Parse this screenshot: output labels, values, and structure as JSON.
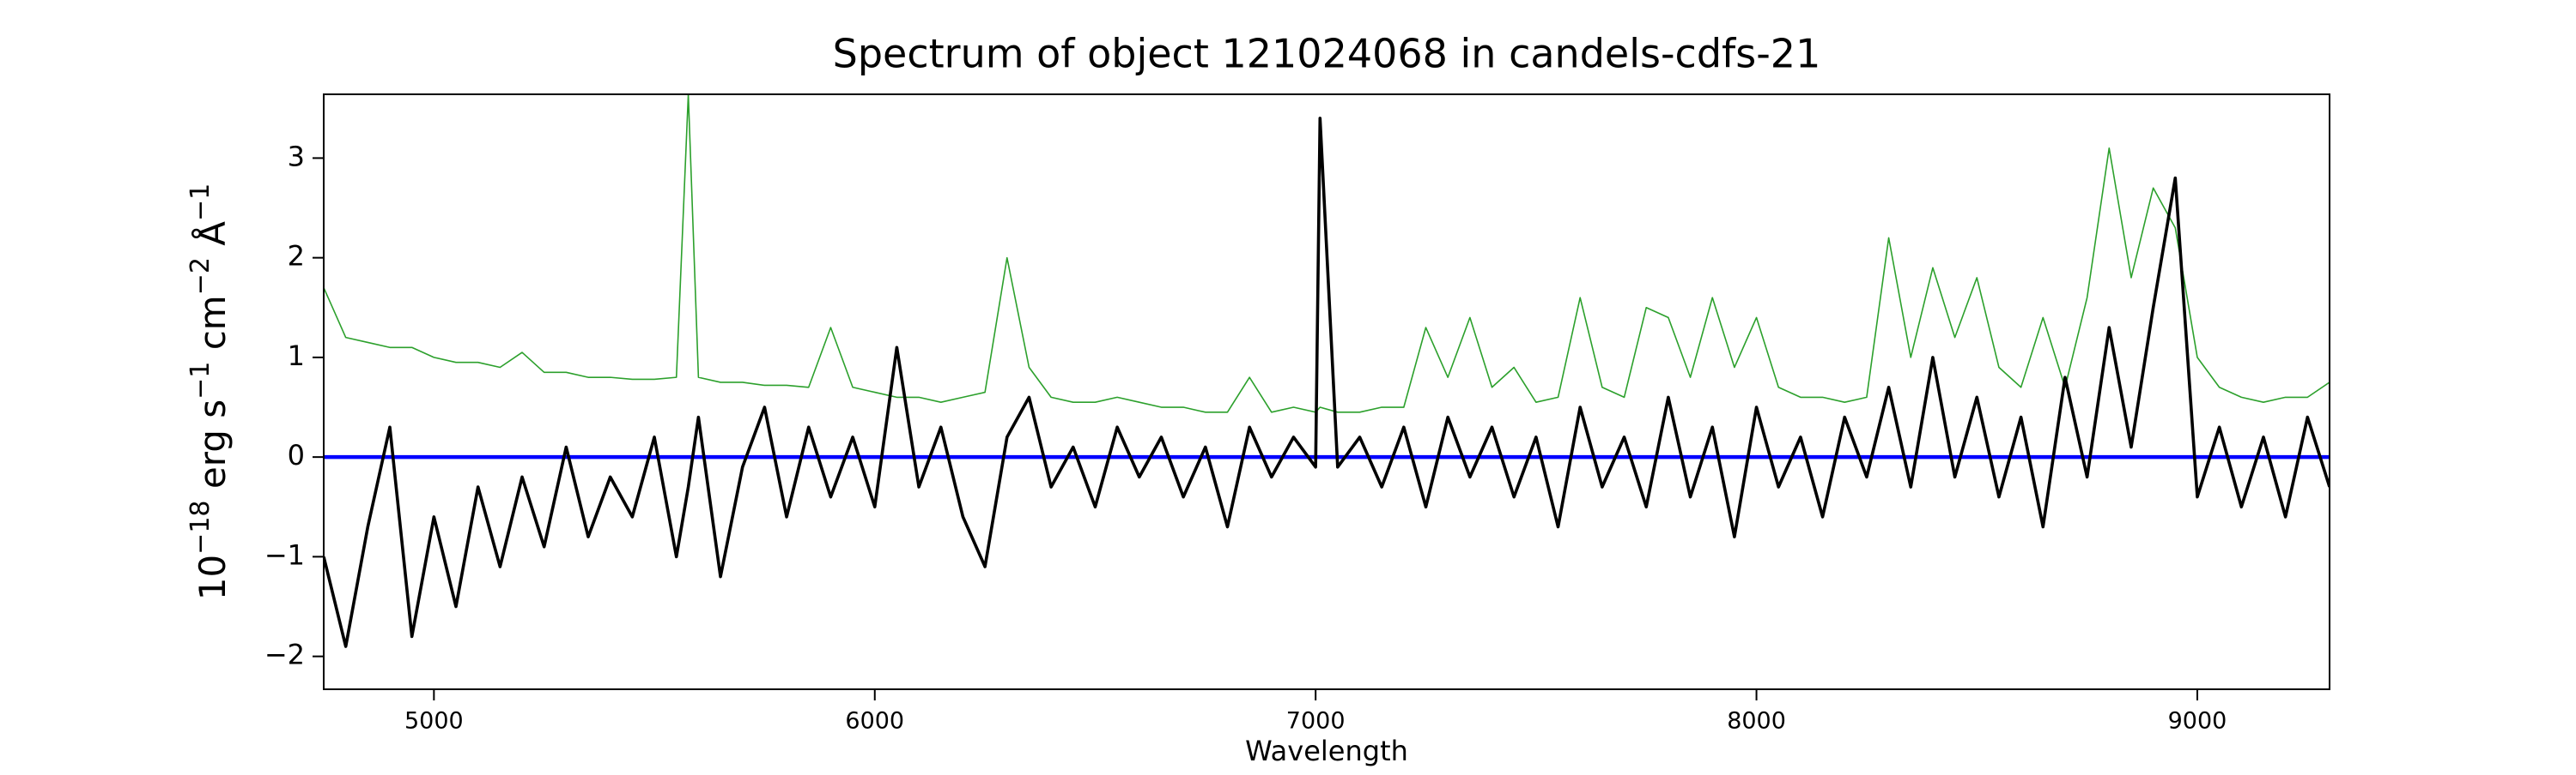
{
  "chart_data": {
    "type": "line",
    "title": "Spectrum of object 121024068 in candels-cdfs-21",
    "xlabel": "Wavelength",
    "ylabel_parts": [
      {
        "text": "10"
      },
      {
        "text": "−18",
        "sup": true
      },
      {
        "text": " erg s"
      },
      {
        "text": "−1",
        "sup": true
      },
      {
        "text": " cm"
      },
      {
        "text": "−2",
        "sup": true
      },
      {
        "text": " Å"
      },
      {
        "text": "−1",
        "sup": true
      }
    ],
    "x": [
      4750,
      4800,
      4850,
      4900,
      4950,
      5000,
      5050,
      5100,
      5150,
      5200,
      5250,
      5300,
      5350,
      5400,
      5450,
      5500,
      5550,
      5577,
      5600,
      5650,
      5700,
      5750,
      5800,
      5850,
      5900,
      5950,
      6000,
      6050,
      6100,
      6150,
      6200,
      6250,
      6300,
      6350,
      6400,
      6450,
      6500,
      6550,
      6600,
      6650,
      6700,
      6750,
      6800,
      6850,
      6900,
      6950,
      7000,
      7010,
      7050,
      7100,
      7150,
      7200,
      7250,
      7300,
      7350,
      7400,
      7450,
      7500,
      7550,
      7600,
      7650,
      7700,
      7750,
      7800,
      7850,
      7900,
      7950,
      8000,
      8050,
      8100,
      8150,
      8200,
      8250,
      8300,
      8350,
      8400,
      8450,
      8500,
      8550,
      8600,
      8650,
      8700,
      8750,
      8800,
      8850,
      8900,
      8950,
      9000,
      9050,
      9100,
      9150,
      9200,
      9250,
      9300
    ],
    "series": [
      {
        "color": "#2ca02c",
        "width": 1.6,
        "values": [
          1.7,
          1.2,
          1.15,
          1.1,
          1.1,
          1.0,
          0.95,
          0.95,
          0.9,
          1.05,
          0.85,
          0.85,
          0.8,
          0.8,
          0.78,
          0.78,
          0.8,
          3.64,
          0.8,
          0.75,
          0.75,
          0.72,
          0.72,
          0.7,
          1.3,
          0.7,
          0.65,
          0.6,
          0.6,
          0.55,
          0.6,
          0.65,
          2.0,
          0.9,
          0.6,
          0.55,
          0.55,
          0.6,
          0.55,
          0.5,
          0.5,
          0.45,
          0.45,
          0.8,
          0.45,
          0.5,
          0.45,
          0.5,
          0.45,
          0.45,
          0.5,
          0.5,
          1.3,
          0.8,
          1.4,
          0.7,
          0.9,
          0.55,
          0.6,
          1.6,
          0.7,
          0.6,
          1.5,
          1.4,
          0.8,
          1.6,
          0.9,
          1.4,
          0.7,
          0.6,
          0.6,
          0.55,
          0.6,
          2.2,
          1.0,
          1.9,
          1.2,
          1.8,
          0.9,
          0.7,
          1.4,
          0.7,
          1.6,
          3.1,
          1.8,
          2.7,
          2.3,
          1.0,
          0.7,
          0.6,
          0.55,
          0.6,
          0.6,
          0.75
        ]
      },
      {
        "color": "#000000",
        "width": 3.6,
        "values": [
          -1.0,
          -1.9,
          -0.7,
          0.3,
          -1.8,
          -0.6,
          -1.5,
          -0.3,
          -1.1,
          -0.2,
          -0.9,
          0.1,
          -0.8,
          -0.2,
          -0.6,
          0.2,
          -1.0,
          -0.3,
          0.4,
          -1.2,
          -0.1,
          0.5,
          -0.6,
          0.3,
          -0.4,
          0.2,
          -0.5,
          1.1,
          -0.3,
          0.3,
          -0.6,
          -1.1,
          0.2,
          0.6,
          -0.3,
          0.1,
          -0.5,
          0.3,
          -0.2,
          0.2,
          -0.4,
          0.1,
          -0.7,
          0.3,
          -0.2,
          0.2,
          -0.1,
          3.4,
          -0.1,
          0.2,
          -0.3,
          0.3,
          -0.5,
          0.4,
          -0.2,
          0.3,
          -0.4,
          0.2,
          -0.7,
          0.5,
          -0.3,
          0.2,
          -0.5,
          0.6,
          -0.4,
          0.3,
          -0.8,
          0.5,
          -0.3,
          0.2,
          -0.6,
          0.4,
          -0.2,
          0.7,
          -0.3,
          1.0,
          -0.2,
          0.6,
          -0.4,
          0.4,
          -0.7,
          0.8,
          -0.2,
          1.3,
          0.1,
          1.5,
          2.8,
          -0.4,
          0.3,
          -0.5,
          0.2,
          -0.6,
          0.4,
          -0.3
        ]
      }
    ],
    "hline": {
      "value": 0,
      "color": "#0000ff"
    },
    "xlim": [
      4750,
      9300
    ],
    "ylim": [
      -2.33,
      3.64
    ],
    "xticks": [
      5000,
      6000,
      7000,
      8000,
      9000
    ],
    "yticks": [
      {
        "value": -2,
        "label": "−2"
      },
      {
        "value": -1,
        "label": "−1"
      },
      0,
      1,
      2,
      3
    ]
  }
}
